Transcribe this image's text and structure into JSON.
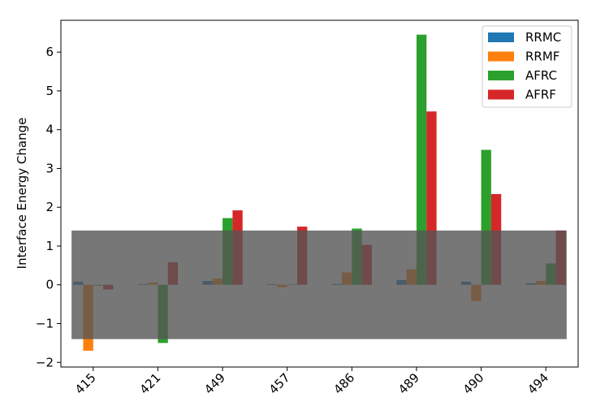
{
  "chart_data": {
    "type": "bar",
    "title": "",
    "xlabel": "",
    "ylabel": "Interface Energy Change",
    "ylim": [
      -2.12,
      6.82
    ],
    "yticks": [
      -2,
      -1,
      0,
      1,
      2,
      3,
      4,
      5,
      6
    ],
    "ytick_labels": [
      "−2",
      "−1",
      "0",
      "1",
      "2",
      "3",
      "4",
      "5",
      "6"
    ],
    "categories": [
      "415",
      "421",
      "449",
      "457",
      "486",
      "489",
      "490",
      "494"
    ],
    "series": [
      {
        "name": "RRMC",
        "color": "#1f77b4",
        "values": [
          0.08,
          0.02,
          0.1,
          0.02,
          0.02,
          0.12,
          0.08,
          0.04
        ]
      },
      {
        "name": "RRMF",
        "color": "#ff7f0e",
        "values": [
          -1.7,
          0.06,
          0.16,
          -0.06,
          0.32,
          0.4,
          -0.42,
          0.1
        ]
      },
      {
        "name": "AFRC",
        "color": "#2ca02c",
        "values": [
          -0.02,
          -1.5,
          1.72,
          0.01,
          1.45,
          6.45,
          3.48,
          0.55
        ]
      },
      {
        "name": "AFRF",
        "color": "#d62728",
        "values": [
          -0.12,
          0.58,
          1.92,
          1.5,
          1.03,
          4.47,
          2.34,
          1.4
        ]
      }
    ],
    "band": {
      "low": -1.4,
      "high": 1.4,
      "color": "#555555",
      "opacity": 0.8
    },
    "legend_position": "top-right",
    "grid": false
  }
}
